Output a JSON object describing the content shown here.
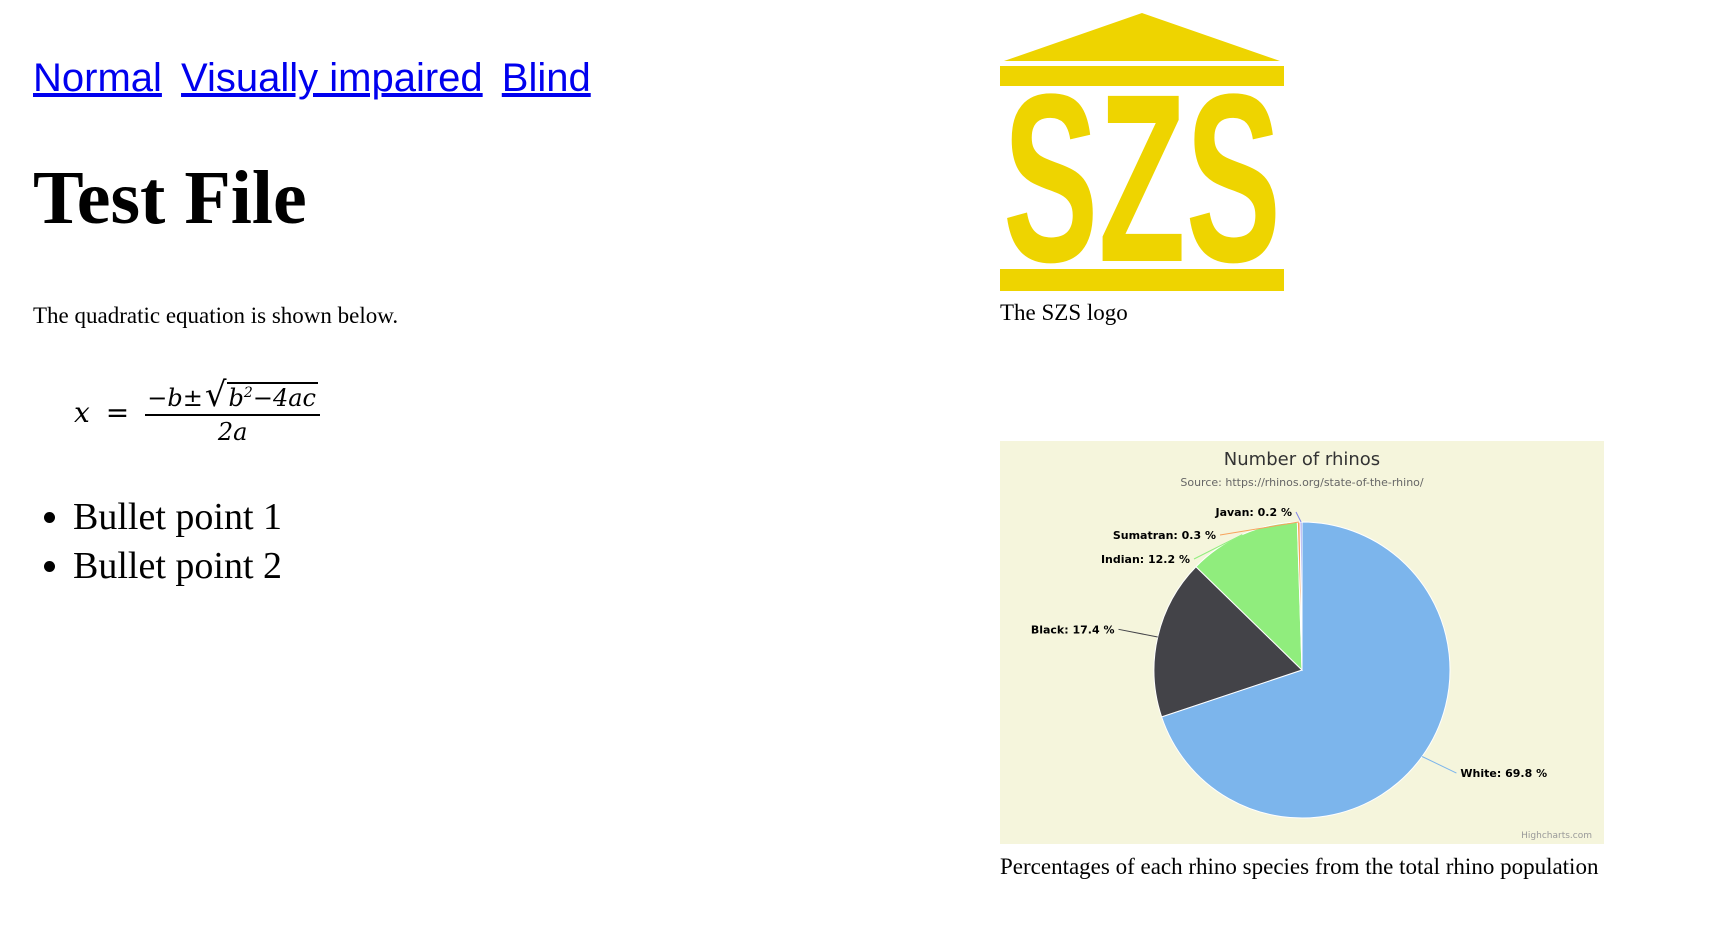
{
  "nav": {
    "links": [
      "Normal",
      "Visually impaired",
      "Blind"
    ]
  },
  "page": {
    "title": "Test File",
    "intro": "The quadratic equation is shown below."
  },
  "equation": {
    "lhs": "x",
    "equals": "=",
    "numerator_prefix": "−b±",
    "radicand_b": "b",
    "radicand_exp": "2",
    "radicand_rest": "−4ac",
    "denominator": "2a"
  },
  "bullets": [
    "Bullet point 1",
    "Bullet point 2"
  ],
  "logo": {
    "text": "SZS",
    "color": "#eed400",
    "caption": "The SZS logo"
  },
  "chart_data": {
    "type": "pie",
    "title": "Number of rhinos",
    "subtitle": "Source: https://rhinos.org/state-of-the-rhino/",
    "credit": "Highcharts.com",
    "background": "#f5f5dc",
    "slices": [
      {
        "name": "White",
        "value": 69.8,
        "color": "#7cb5ec"
      },
      {
        "name": "Black",
        "value": 17.4,
        "color": "#434348"
      },
      {
        "name": "Indian",
        "value": 12.2,
        "color": "#90ed7d"
      },
      {
        "name": "Sumatran",
        "value": 0.3,
        "color": "#f7a35c"
      },
      {
        "name": "Javan",
        "value": 0.2,
        "color": "#8085e9"
      }
    ],
    "label_suffix": " %",
    "caption": "Percentages of each rhino species from the total rhino population"
  }
}
